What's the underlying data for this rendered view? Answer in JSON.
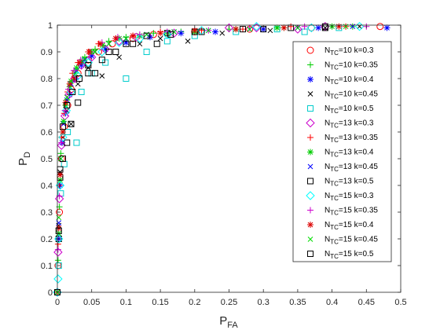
{
  "chart_data": {
    "type": "scatter",
    "title": "",
    "xlabel": {
      "main": "P",
      "sub": "FA"
    },
    "ylabel": {
      "main": "P",
      "sub": "D"
    },
    "xlim": [
      0,
      0.5
    ],
    "ylim": [
      0,
      1
    ],
    "xticks": [
      "0",
      "0.05",
      "0.1",
      "0.15",
      "0.2",
      "0.25",
      "0.3",
      "0.35",
      "0.4",
      "0.45",
      "0.5"
    ],
    "yticks": [
      "0",
      "0.1",
      "0.2",
      "0.3",
      "0.4",
      "0.5",
      "0.6",
      "0.7",
      "0.8",
      "0.9",
      "1"
    ],
    "grid": false,
    "legend_position": "right",
    "series": [
      {
        "name": {
          "pre": "N",
          "sub": "TC",
          "post": "=10 k=0.3"
        },
        "marker": "circle",
        "color": "#ff0000",
        "points": [
          [
            0,
            0
          ],
          [
            0.001,
            0.1
          ],
          [
            0.003,
            0.3
          ],
          [
            0.006,
            0.5
          ],
          [
            0.01,
            0.62
          ],
          [
            0.015,
            0.7
          ],
          [
            0.02,
            0.76
          ],
          [
            0.03,
            0.82
          ],
          [
            0.045,
            0.87
          ],
          [
            0.06,
            0.9
          ],
          [
            0.08,
            0.93
          ],
          [
            0.11,
            0.95
          ],
          [
            0.14,
            0.965
          ],
          [
            0.2,
            0.975
          ],
          [
            0.28,
            0.985
          ],
          [
            0.37,
            0.99
          ],
          [
            0.47,
            0.995
          ]
        ]
      },
      {
        "name": {
          "pre": "N",
          "sub": "TC",
          "post": "=10 k=0.35"
        },
        "marker": "plus",
        "color": "#00cc00",
        "points": [
          [
            0,
            0
          ],
          [
            0.001,
            0.12
          ],
          [
            0.003,
            0.32
          ],
          [
            0.005,
            0.52
          ],
          [
            0.009,
            0.64
          ],
          [
            0.014,
            0.72
          ],
          [
            0.02,
            0.79
          ],
          [
            0.028,
            0.84
          ],
          [
            0.04,
            0.88
          ],
          [
            0.055,
            0.91
          ],
          [
            0.075,
            0.94
          ],
          [
            0.1,
            0.955
          ],
          [
            0.14,
            0.97
          ],
          [
            0.18,
            0.975
          ],
          [
            0.25,
            0.985
          ],
          [
            0.33,
            0.99
          ],
          [
            0.43,
            0.995
          ]
        ]
      },
      {
        "name": {
          "pre": "N",
          "sub": "TC",
          "post": "=10 k=0.4"
        },
        "marker": "asterisk",
        "color": "#0000ff",
        "points": [
          [
            0,
            0
          ],
          [
            0.002,
            0.2
          ],
          [
            0.004,
            0.4
          ],
          [
            0.007,
            0.56
          ],
          [
            0.012,
            0.67
          ],
          [
            0.018,
            0.74
          ],
          [
            0.025,
            0.8
          ],
          [
            0.035,
            0.85
          ],
          [
            0.05,
            0.885
          ],
          [
            0.07,
            0.91
          ],
          [
            0.1,
            0.935
          ],
          [
            0.135,
            0.955
          ],
          [
            0.18,
            0.97
          ],
          [
            0.23,
            0.975
          ],
          [
            0.3,
            0.985
          ],
          [
            0.38,
            0.99
          ],
          [
            0.48,
            0.99
          ]
        ]
      },
      {
        "name": {
          "pre": "N",
          "sub": "TC",
          "post": "=10 k=0.45"
        },
        "marker": "cross",
        "color": "#000000",
        "points": [
          [
            0,
            0
          ],
          [
            0.002,
            0.25
          ],
          [
            0.004,
            0.45
          ],
          [
            0.008,
            0.58
          ],
          [
            0.014,
            0.68
          ],
          [
            0.02,
            0.63
          ],
          [
            0.03,
            0.78
          ],
          [
            0.045,
            0.84
          ],
          [
            0.065,
            0.81
          ],
          [
            0.09,
            0.88
          ],
          [
            0.12,
            0.93
          ],
          [
            0.15,
            0.95
          ],
          [
            0.19,
            0.94
          ],
          [
            0.24,
            0.97
          ],
          [
            0.31,
            0.98
          ],
          [
            0.39,
            0.99
          ],
          [
            0.44,
            0.995
          ]
        ]
      },
      {
        "name": {
          "pre": "N",
          "sub": "TC",
          "post": "=10 k=0.5"
        },
        "marker": "square",
        "color": "#00cccc",
        "points": [
          [
            0,
            0
          ],
          [
            0.002,
            0.1
          ],
          [
            0.005,
            0.37
          ],
          [
            0.01,
            0.48
          ],
          [
            0.015,
            0.6
          ],
          [
            0.028,
            0.56
          ],
          [
            0.035,
            0.75
          ],
          [
            0.05,
            0.82
          ],
          [
            0.07,
            0.86
          ],
          [
            0.1,
            0.8
          ],
          [
            0.13,
            0.9
          ],
          [
            0.16,
            0.94
          ],
          [
            0.2,
            0.96
          ],
          [
            0.26,
            0.975
          ],
          [
            0.32,
            0.985
          ],
          [
            0.36,
            0.975
          ],
          [
            0.41,
            0.99
          ]
        ]
      },
      {
        "name": {
          "pre": "N",
          "sub": "TC",
          "post": "=13 k=0.3"
        },
        "marker": "diamond",
        "color": "#cc00cc",
        "points": [
          [
            0,
            0
          ],
          [
            0.001,
            0.15
          ],
          [
            0.003,
            0.35
          ],
          [
            0.006,
            0.55
          ],
          [
            0.011,
            0.66
          ],
          [
            0.017,
            0.74
          ],
          [
            0.025,
            0.8
          ],
          [
            0.035,
            0.85
          ],
          [
            0.05,
            0.88
          ],
          [
            0.07,
            0.91
          ],
          [
            0.09,
            0.94
          ],
          [
            0.115,
            0.955
          ],
          [
            0.17,
            0.97
          ],
          [
            0.25,
            0.99
          ],
          [
            0.29,
            0.99
          ],
          [
            0.35,
            0.985
          ],
          [
            0.39,
            0.995
          ]
        ]
      },
      {
        "name": {
          "pre": "N",
          "sub": "TC",
          "post": "=13 k=0.35"
        },
        "marker": "plus",
        "color": "#ff0000",
        "points": [
          [
            0,
            0
          ],
          [
            0.001,
            0.18
          ],
          [
            0.003,
            0.4
          ],
          [
            0.006,
            0.58
          ],
          [
            0.01,
            0.67
          ],
          [
            0.015,
            0.75
          ],
          [
            0.022,
            0.82
          ],
          [
            0.03,
            0.86
          ],
          [
            0.045,
            0.9
          ],
          [
            0.06,
            0.93
          ],
          [
            0.085,
            0.95
          ],
          [
            0.11,
            0.96
          ],
          [
            0.15,
            0.975
          ],
          [
            0.21,
            0.98
          ],
          [
            0.27,
            0.985
          ],
          [
            0.34,
            0.995
          ],
          [
            0.42,
            0.995
          ]
        ]
      },
      {
        "name": {
          "pre": "N",
          "sub": "TC",
          "post": "=13 k=0.4"
        },
        "marker": "asterisk",
        "color": "#00cc00",
        "points": [
          [
            0,
            0
          ],
          [
            0.002,
            0.22
          ],
          [
            0.004,
            0.42
          ],
          [
            0.008,
            0.6
          ],
          [
            0.012,
            0.7
          ],
          [
            0.018,
            0.77
          ],
          [
            0.026,
            0.82
          ],
          [
            0.036,
            0.865
          ],
          [
            0.05,
            0.9
          ],
          [
            0.066,
            0.925
          ],
          [
            0.09,
            0.95
          ],
          [
            0.12,
            0.96
          ],
          [
            0.16,
            0.97
          ],
          [
            0.2,
            0.975
          ],
          [
            0.26,
            0.985
          ],
          [
            0.32,
            0.99
          ],
          [
            0.4,
            0.995
          ]
        ]
      },
      {
        "name": {
          "pre": "N",
          "sub": "TC",
          "post": "=13 k=0.45"
        },
        "marker": "cross",
        "color": "#0000ff",
        "points": [
          [
            0,
            0
          ],
          [
            0.002,
            0.26
          ],
          [
            0.005,
            0.5
          ],
          [
            0.009,
            0.63
          ],
          [
            0.014,
            0.72
          ],
          [
            0.02,
            0.78
          ],
          [
            0.028,
            0.83
          ],
          [
            0.04,
            0.87
          ],
          [
            0.055,
            0.9
          ],
          [
            0.075,
            0.93
          ],
          [
            0.1,
            0.95
          ],
          [
            0.13,
            0.965
          ],
          [
            0.17,
            0.975
          ],
          [
            0.22,
            0.98
          ],
          [
            0.28,
            0.985
          ],
          [
            0.35,
            0.99
          ],
          [
            0.43,
            0.995
          ]
        ]
      },
      {
        "name": {
          "pre": "N",
          "sub": "TC",
          "post": "=13 k=0.5"
        },
        "marker": "square",
        "color": "#000000",
        "points": [
          [
            0,
            0
          ],
          [
            0.002,
            0.2
          ],
          [
            0.004,
            0.43
          ],
          [
            0.008,
            0.5
          ],
          [
            0.014,
            0.56
          ],
          [
            0.02,
            0.63
          ],
          [
            0.03,
            0.71
          ],
          [
            0.045,
            0.82
          ],
          [
            0.065,
            0.87
          ],
          [
            0.085,
            0.9
          ],
          [
            0.11,
            0.93
          ],
          [
            0.145,
            0.93
          ],
          [
            0.16,
            0.97
          ],
          [
            0.2,
            0.975
          ],
          [
            0.3,
            0.985
          ],
          [
            0.39,
            0.99
          ]
        ]
      },
      {
        "name": {
          "pre": "N",
          "sub": "TC",
          "post": "=15 k=0.3"
        },
        "marker": "diamond",
        "color": "#00ffff",
        "points": [
          [
            0,
            0
          ],
          [
            0.001,
            0.05
          ],
          [
            0.002,
            0.2
          ],
          [
            0.004,
            0.4
          ],
          [
            0.008,
            0.58
          ],
          [
            0.013,
            0.68
          ],
          [
            0.02,
            0.75
          ],
          [
            0.03,
            0.81
          ],
          [
            0.045,
            0.86
          ],
          [
            0.065,
            0.9
          ],
          [
            0.09,
            0.935
          ],
          [
            0.12,
            0.95
          ],
          [
            0.16,
            0.965
          ],
          [
            0.21,
            0.98
          ],
          [
            0.29,
            0.995
          ],
          [
            0.37,
            0.99
          ],
          [
            0.44,
            0.995
          ]
        ]
      },
      {
        "name": {
          "pre": "N",
          "sub": "TC",
          "post": "=15 k=0.35"
        },
        "marker": "plus",
        "color": "#cc00cc",
        "points": [
          [
            0,
            0
          ],
          [
            0.001,
            0.16
          ],
          [
            0.003,
            0.36
          ],
          [
            0.006,
            0.56
          ],
          [
            0.011,
            0.68
          ],
          [
            0.016,
            0.76
          ],
          [
            0.024,
            0.83
          ],
          [
            0.034,
            0.87
          ],
          [
            0.048,
            0.9
          ],
          [
            0.065,
            0.935
          ],
          [
            0.088,
            0.955
          ],
          [
            0.12,
            0.965
          ],
          [
            0.16,
            0.975
          ],
          [
            0.22,
            0.98
          ],
          [
            0.28,
            0.99
          ],
          [
            0.36,
            0.995
          ],
          [
            0.45,
            0.995
          ]
        ]
      },
      {
        "name": {
          "pre": "N",
          "sub": "TC",
          "post": "=15 k=0.4"
        },
        "marker": "asterisk",
        "color": "#dd0000",
        "points": [
          [
            0,
            0
          ],
          [
            0.002,
            0.24
          ],
          [
            0.004,
            0.44
          ],
          [
            0.008,
            0.6
          ],
          [
            0.012,
            0.71
          ],
          [
            0.018,
            0.78
          ],
          [
            0.024,
            0.8
          ],
          [
            0.032,
            0.86
          ],
          [
            0.046,
            0.9
          ],
          [
            0.062,
            0.93
          ],
          [
            0.085,
            0.95
          ],
          [
            0.11,
            0.96
          ],
          [
            0.15,
            0.97
          ],
          [
            0.2,
            0.98
          ],
          [
            0.26,
            0.985
          ],
          [
            0.33,
            0.99
          ],
          [
            0.41,
            0.995
          ]
        ]
      },
      {
        "name": {
          "pre": "N",
          "sub": "TC",
          "post": "=15 k=0.45"
        },
        "marker": "cross",
        "color": "#00dd00",
        "points": [
          [
            0,
            0
          ],
          [
            0.002,
            0.28
          ],
          [
            0.005,
            0.5
          ],
          [
            0.009,
            0.64
          ],
          [
            0.014,
            0.73
          ],
          [
            0.02,
            0.79
          ],
          [
            0.028,
            0.84
          ],
          [
            0.04,
            0.875
          ],
          [
            0.055,
            0.9
          ],
          [
            0.075,
            0.93
          ],
          [
            0.1,
            0.95
          ],
          [
            0.13,
            0.965
          ],
          [
            0.17,
            0.975
          ],
          [
            0.22,
            0.98
          ],
          [
            0.28,
            0.985
          ],
          [
            0.35,
            0.99
          ],
          [
            0.42,
            0.995
          ]
        ]
      },
      {
        "name": {
          "pre": "N",
          "sub": "TC",
          "post": "=15 k=0.5"
        },
        "marker": "square",
        "color": "#000000",
        "points": [
          [
            0,
            0
          ],
          [
            0.002,
            0.23
          ],
          [
            0.004,
            0.46
          ],
          [
            0.008,
            0.62
          ],
          [
            0.014,
            0.7
          ],
          [
            0.022,
            0.75
          ],
          [
            0.032,
            0.8
          ],
          [
            0.045,
            0.85
          ],
          [
            0.055,
            0.82
          ],
          [
            0.075,
            0.9
          ],
          [
            0.1,
            0.93
          ],
          [
            0.13,
            0.96
          ],
          [
            0.165,
            0.965
          ],
          [
            0.21,
            0.975
          ],
          [
            0.27,
            0.985
          ],
          [
            0.34,
            0.99
          ],
          [
            0.39,
            0.995
          ]
        ]
      }
    ]
  }
}
